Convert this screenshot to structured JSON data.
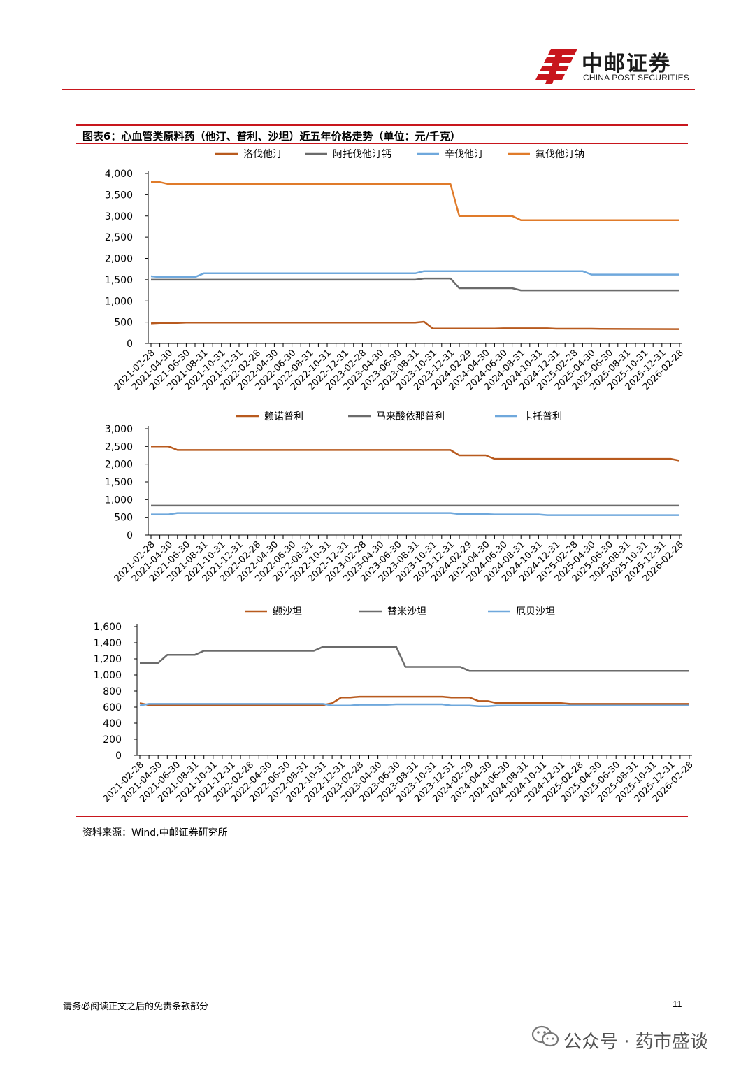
{
  "header": {
    "logo_cn": "中邮证券",
    "logo_en": "CHINA POST SECURITIES",
    "brand_color": "#c8161d"
  },
  "figure": {
    "title": "图表6：心血管类原料药（他汀、普利、沙坦）近五年价格走势（单位：元/千克）",
    "source": "资料来源：Wind,中邮证券研究所"
  },
  "footer": {
    "disclaimer": "请务必阅读正文之后的免责条款部分",
    "page": "11",
    "watermark": "公众号 · 药市盛谈"
  },
  "chart_data": [
    {
      "type": "line",
      "title": "他汀",
      "categories": [
        "2021-02-28",
        "2021-04-30",
        "2021-06-30",
        "2021-08-31",
        "2021-10-31",
        "2021-12-31",
        "2022-02-28",
        "2022-04-30",
        "2022-06-30",
        "2022-08-31",
        "2022-10-31",
        "2022-12-31",
        "2023-02-28",
        "2023-04-30",
        "2023-06-30",
        "2023-08-31",
        "2023-10-31",
        "2023-12-31",
        "2024-02-29",
        "2024-04-30",
        "2024-06-30",
        "2024-08-31",
        "2024-10-31",
        "2024-12-31",
        "2025-02-28",
        "2025-04-30",
        "2025-06-30",
        "2025-08-31",
        "2025-10-31",
        "2025-12-31",
        "2026-02-28"
      ],
      "n_points": 61,
      "ylim": [
        0,
        4000
      ],
      "yticks": [
        0,
        500,
        1000,
        1500,
        2000,
        2500,
        3000,
        3500,
        4000
      ],
      "ytick_labels": [
        "0",
        "500",
        "1,000",
        "1,500",
        "2,000",
        "2,500",
        "3,000",
        "3,500",
        "4,000"
      ],
      "series": [
        {
          "name": "洛伐他汀",
          "color": "#b85a1e",
          "values": [
            {
              "i": 0,
              "v": 470
            },
            {
              "i": 1,
              "v": 480
            },
            {
              "i": 3,
              "v": 480
            },
            {
              "i": 4,
              "v": 490
            },
            {
              "i": 30,
              "v": 490
            },
            {
              "i": 31,
              "v": 510
            },
            {
              "i": 32,
              "v": 350
            },
            {
              "i": 39,
              "v": 350
            },
            {
              "i": 40,
              "v": 355
            },
            {
              "i": 45,
              "v": 355
            },
            {
              "i": 46,
              "v": 345
            },
            {
              "i": 50,
              "v": 345
            },
            {
              "i": 51,
              "v": 340
            },
            {
              "i": 60,
              "v": 335
            }
          ]
        },
        {
          "name": "阿托伐他汀钙",
          "color": "#6b6b6b",
          "values": [
            {
              "i": 0,
              "v": 1500
            },
            {
              "i": 30,
              "v": 1500
            },
            {
              "i": 31,
              "v": 1530
            },
            {
              "i": 34,
              "v": 1530
            },
            {
              "i": 35,
              "v": 1300
            },
            {
              "i": 41,
              "v": 1300
            },
            {
              "i": 42,
              "v": 1250
            },
            {
              "i": 60,
              "v": 1250
            }
          ]
        },
        {
          "name": "辛伐他汀",
          "color": "#6fa8dc",
          "values": [
            {
              "i": 0,
              "v": 1580
            },
            {
              "i": 1,
              "v": 1560
            },
            {
              "i": 5,
              "v": 1560
            },
            {
              "i": 6,
              "v": 1650
            },
            {
              "i": 30,
              "v": 1650
            },
            {
              "i": 31,
              "v": 1700
            },
            {
              "i": 41,
              "v": 1700
            },
            {
              "i": 42,
              "v": 1700
            },
            {
              "i": 49,
              "v": 1700
            },
            {
              "i": 50,
              "v": 1620
            },
            {
              "i": 60,
              "v": 1620
            }
          ]
        },
        {
          "name": "氟伐他汀钠",
          "color": "#e07b2a",
          "values": [
            {
              "i": 0,
              "v": 3800
            },
            {
              "i": 1,
              "v": 3800
            },
            {
              "i": 2,
              "v": 3750
            },
            {
              "i": 33,
              "v": 3750
            },
            {
              "i": 34,
              "v": 3750
            },
            {
              "i": 35,
              "v": 3000
            },
            {
              "i": 40,
              "v": 3000
            },
            {
              "i": 41,
              "v": 3000
            },
            {
              "i": 42,
              "v": 2900
            },
            {
              "i": 60,
              "v": 2900
            }
          ]
        }
      ]
    },
    {
      "type": "line",
      "title": "普利",
      "categories": [
        "2021-02-28",
        "2021-04-30",
        "2021-06-30",
        "2021-08-31",
        "2021-10-31",
        "2021-12-31",
        "2022-02-28",
        "2022-04-30",
        "2022-06-30",
        "2022-08-31",
        "2022-10-31",
        "2022-12-31",
        "2023-02-28",
        "2023-04-30",
        "2023-06-30",
        "2023-08-31",
        "2023-10-31",
        "2023-12-31",
        "2024-02-29",
        "2024-04-30",
        "2024-06-30",
        "2024-08-31",
        "2024-10-31",
        "2024-12-31",
        "2025-02-28",
        "2025-04-30",
        "2025-06-30",
        "2025-08-31",
        "2025-10-31",
        "2025-12-31",
        "2026-02-28"
      ],
      "n_points": 61,
      "ylim": [
        0,
        3000
      ],
      "yticks": [
        0,
        500,
        1000,
        1500,
        2000,
        2500,
        3000
      ],
      "ytick_labels": [
        "0",
        "500",
        "1,000",
        "1,500",
        "2,000",
        "2,500",
        "3,000"
      ],
      "series": [
        {
          "name": "赖诺普利",
          "color": "#b85a1e",
          "values": [
            {
              "i": 0,
              "v": 2500
            },
            {
              "i": 2,
              "v": 2500
            },
            {
              "i": 3,
              "v": 2400
            },
            {
              "i": 34,
              "v": 2400
            },
            {
              "i": 35,
              "v": 2250
            },
            {
              "i": 38,
              "v": 2250
            },
            {
              "i": 39,
              "v": 2150
            },
            {
              "i": 59,
              "v": 2150
            },
            {
              "i": 60,
              "v": 2100
            }
          ]
        },
        {
          "name": "马来酸依那普利",
          "color": "#6b6b6b",
          "values": [
            {
              "i": 0,
              "v": 830
            },
            {
              "i": 60,
              "v": 830
            }
          ]
        },
        {
          "name": "卡托普利",
          "color": "#6fa8dc",
          "values": [
            {
              "i": 0,
              "v": 580
            },
            {
              "i": 2,
              "v": 580
            },
            {
              "i": 3,
              "v": 620
            },
            {
              "i": 34,
              "v": 620
            },
            {
              "i": 35,
              "v": 590
            },
            {
              "i": 38,
              "v": 590
            },
            {
              "i": 39,
              "v": 580
            },
            {
              "i": 44,
              "v": 580
            },
            {
              "i": 45,
              "v": 560
            },
            {
              "i": 60,
              "v": 560
            }
          ]
        }
      ]
    },
    {
      "type": "line",
      "title": "沙坦",
      "categories": [
        "2021-02-28",
        "2021-04-30",
        "2021-06-30",
        "2021-08-31",
        "2021-10-31",
        "2021-12-31",
        "2022-02-28",
        "2022-04-30",
        "2022-06-30",
        "2022-08-31",
        "2022-10-31",
        "2022-12-31",
        "2023-02-28",
        "2023-04-30",
        "2023-06-30",
        "2023-08-31",
        "2023-10-31",
        "2023-12-31",
        "2024-02-29",
        "2024-04-30",
        "2024-06-30",
        "2024-08-31",
        "2024-10-31",
        "2024-12-31",
        "2025-02-28",
        "2025-04-30",
        "2025-06-30",
        "2025-08-31",
        "2025-10-31",
        "2025-12-31",
        "2026-02-28"
      ],
      "n_points": 61,
      "ylim": [
        0,
        1600
      ],
      "yticks": [
        0,
        200,
        400,
        600,
        800,
        1000,
        1200,
        1400,
        1600
      ],
      "ytick_labels": [
        "0",
        "200",
        "400",
        "600",
        "800",
        "1,000",
        "1,200",
        "1,400",
        "1,600"
      ],
      "series": [
        {
          "name": "缬沙坦",
          "color": "#b85a1e",
          "values": [
            {
              "i": 0,
              "v": 650
            },
            {
              "i": 1,
              "v": 625
            },
            {
              "i": 20,
              "v": 625
            },
            {
              "i": 21,
              "v": 650
            },
            {
              "i": 22,
              "v": 720
            },
            {
              "i": 23,
              "v": 720
            },
            {
              "i": 24,
              "v": 730
            },
            {
              "i": 33,
              "v": 730
            },
            {
              "i": 34,
              "v": 720
            },
            {
              "i": 36,
              "v": 720
            },
            {
              "i": 37,
              "v": 675
            },
            {
              "i": 38,
              "v": 675
            },
            {
              "i": 39,
              "v": 650
            },
            {
              "i": 46,
              "v": 650
            },
            {
              "i": 47,
              "v": 640
            },
            {
              "i": 60,
              "v": 640
            }
          ]
        },
        {
          "name": "替米沙坦",
          "color": "#6b6b6b",
          "values": [
            {
              "i": 0,
              "v": 1150
            },
            {
              "i": 2,
              "v": 1150
            },
            {
              "i": 3,
              "v": 1250
            },
            {
              "i": 6,
              "v": 1250
            },
            {
              "i": 7,
              "v": 1300
            },
            {
              "i": 19,
              "v": 1300
            },
            {
              "i": 20,
              "v": 1350
            },
            {
              "i": 28,
              "v": 1350
            },
            {
              "i": 29,
              "v": 1100
            },
            {
              "i": 35,
              "v": 1100
            },
            {
              "i": 36,
              "v": 1050
            },
            {
              "i": 60,
              "v": 1050
            }
          ]
        },
        {
          "name": "厄贝沙坦",
          "color": "#6fa8dc",
          "values": [
            {
              "i": 0,
              "v": 620
            },
            {
              "i": 1,
              "v": 640
            },
            {
              "i": 20,
              "v": 640
            },
            {
              "i": 21,
              "v": 620
            },
            {
              "i": 23,
              "v": 620
            },
            {
              "i": 24,
              "v": 630
            },
            {
              "i": 27,
              "v": 630
            },
            {
              "i": 28,
              "v": 635
            },
            {
              "i": 33,
              "v": 635
            },
            {
              "i": 34,
              "v": 620
            },
            {
              "i": 36,
              "v": 620
            },
            {
              "i": 37,
              "v": 610
            },
            {
              "i": 38,
              "v": 610
            },
            {
              "i": 39,
              "v": 620
            },
            {
              "i": 60,
              "v": 620
            }
          ]
        }
      ]
    }
  ]
}
